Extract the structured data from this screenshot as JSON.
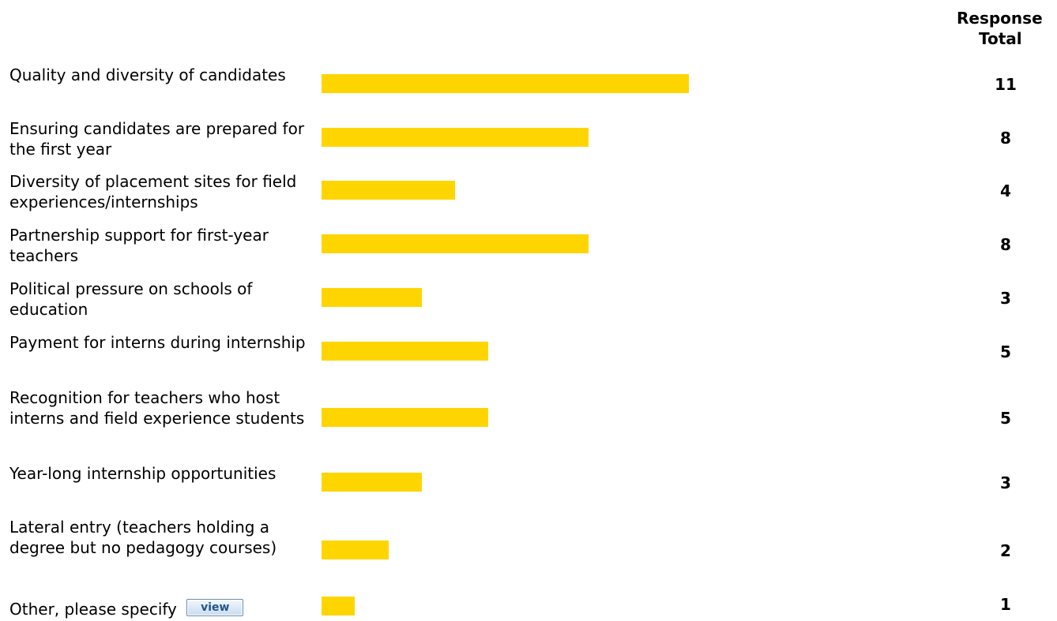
{
  "header": {
    "line1": "Response",
    "line2": "Total"
  },
  "chart_data": {
    "type": "bar",
    "orientation": "horizontal",
    "bar_color": "#ffd500",
    "categories": [
      "Quality and diversity of candidates",
      "Ensuring candidates are prepared for the first year",
      "Diversity of placement sites for field experiences/internships",
      "Partnership support for first-year teachers",
      "Political pressure on schools of education",
      "Payment for interns during internship",
      "Recognition for teachers who host interns and field experience students",
      "Year-long internship opportunities",
      "Lateral entry (teachers holding a degree but no pedagogy courses)",
      "Other, please specify"
    ],
    "values": [
      11,
      8,
      4,
      8,
      3,
      5,
      5,
      3,
      2,
      1
    ],
    "xlim": [
      0,
      11
    ]
  },
  "rows": [
    {
      "label": "Quality and diversity of candidates",
      "total": "11"
    },
    {
      "label": "Ensuring candidates are prepared for the first year",
      "total": "8"
    },
    {
      "label": "Diversity of placement sites for field experiences/internships",
      "total": "4"
    },
    {
      "label": "Partnership support for first-year teachers",
      "total": "8"
    },
    {
      "label": "Political pressure on schools of education",
      "total": "3"
    },
    {
      "label": "Payment for interns during internship",
      "total": "5"
    },
    {
      "label": "Recognition for teachers who host interns and field experience students",
      "total": "5"
    },
    {
      "label": "Year-long internship opportunities",
      "total": "3"
    },
    {
      "label": "Lateral entry (teachers holding a degree but no pedagogy courses)",
      "total": "2"
    },
    {
      "label": "Other, please specify",
      "total": "1"
    }
  ],
  "view_button": {
    "label": "view"
  }
}
